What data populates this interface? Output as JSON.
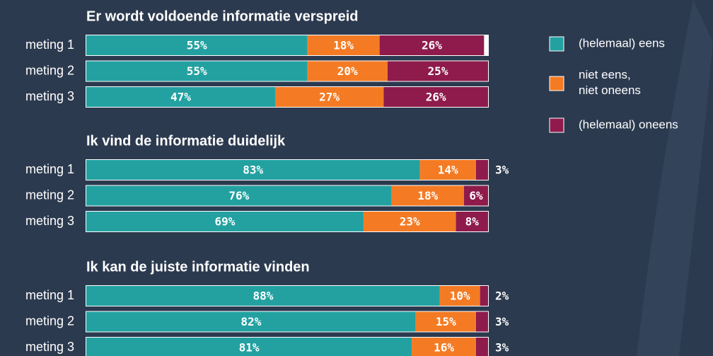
{
  "chart_data": {
    "type": "bar",
    "orientation": "horizontal",
    "stacked": true,
    "xlim": [
      0,
      100
    ],
    "series": [
      {
        "name": "(helemaal) eens",
        "color": "#23a1a1"
      },
      {
        "name": "niet eens,\nniet oneens",
        "color": "#f47b24"
      },
      {
        "name": "(helemaal) oneens",
        "color": "#8e1b4c"
      }
    ],
    "panels": [
      {
        "title": "Er wordt voldoende informatie verspreid",
        "categories": [
          "meting 1",
          "meting 2",
          "meting 3"
        ],
        "series": [
          {
            "values": [
              55,
              55,
              47
            ],
            "value_labels": [
              "55%",
              "55%",
              "47%"
            ]
          },
          {
            "values": [
              18,
              20,
              27
            ],
            "value_labels": [
              "18%",
              "20%",
              "27%"
            ]
          },
          {
            "values": [
              26,
              25,
              26
            ],
            "value_labels": [
              "26%",
              "25%",
              "26%"
            ]
          }
        ]
      },
      {
        "title": "Ik vind de informatie duidelijk",
        "categories": [
          "meting 1",
          "meting 2",
          "meting 3"
        ],
        "series": [
          {
            "values": [
              83,
              76,
              69
            ],
            "value_labels": [
              "83%",
              "76%",
              "69%"
            ]
          },
          {
            "values": [
              14,
              18,
              23
            ],
            "value_labels": [
              "14%",
              "18%",
              "23%"
            ]
          },
          {
            "values": [
              3,
              6,
              8
            ],
            "value_labels": [
              "3%",
              "6%",
              "8%"
            ]
          }
        ]
      },
      {
        "title": "Ik kan de juiste informatie vinden",
        "categories": [
          "meting 1",
          "meting 2",
          "meting 3"
        ],
        "series": [
          {
            "values": [
              88,
              82,
              81
            ],
            "value_labels": [
              "88%",
              "82%",
              "81%"
            ]
          },
          {
            "values": [
              10,
              15,
              16
            ],
            "value_labels": [
              "10%",
              "15%",
              "16%"
            ]
          },
          {
            "values": [
              2,
              3,
              3
            ],
            "value_labels": [
              "2%",
              "3%",
              "3%"
            ]
          }
        ]
      }
    ]
  }
}
